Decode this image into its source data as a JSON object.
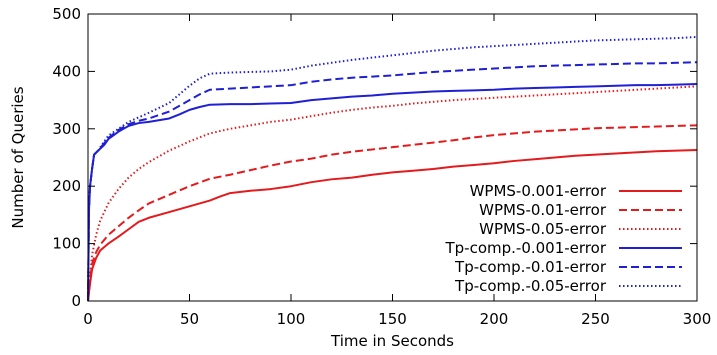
{
  "chart_data": {
    "type": "line",
    "title": "",
    "xlabel": "Time in Seconds",
    "ylabel": "Number of Queries",
    "xlim": [
      0,
      300
    ],
    "ylim": [
      0,
      500
    ],
    "xticks": [
      "0",
      "50",
      "100",
      "150",
      "200",
      "250",
      "300"
    ],
    "yticks": [
      "0",
      "100",
      "200",
      "300",
      "400",
      "500"
    ],
    "grid": false,
    "legend_position": "bottom-right",
    "series": [
      {
        "name": "WPMS-0.001-error",
        "color": "#e41a1c",
        "dash": "solid",
        "points": [
          [
            0,
            0
          ],
          [
            1,
            30
          ],
          [
            2,
            55
          ],
          [
            4,
            75
          ],
          [
            6,
            88
          ],
          [
            10,
            100
          ],
          [
            15,
            112
          ],
          [
            20,
            125
          ],
          [
            25,
            138
          ],
          [
            30,
            145
          ],
          [
            40,
            155
          ],
          [
            50,
            165
          ],
          [
            60,
            175
          ],
          [
            65,
            182
          ],
          [
            70,
            188
          ],
          [
            80,
            192
          ],
          [
            90,
            195
          ],
          [
            100,
            200
          ],
          [
            110,
            207
          ],
          [
            120,
            212
          ],
          [
            130,
            215
          ],
          [
            140,
            220
          ],
          [
            150,
            224
          ],
          [
            160,
            227
          ],
          [
            170,
            230
          ],
          [
            180,
            234
          ],
          [
            190,
            237
          ],
          [
            200,
            240
          ],
          [
            210,
            244
          ],
          [
            220,
            247
          ],
          [
            230,
            250
          ],
          [
            240,
            253
          ],
          [
            250,
            255
          ],
          [
            260,
            257
          ],
          [
            270,
            259
          ],
          [
            280,
            261
          ],
          [
            290,
            262
          ],
          [
            300,
            263
          ]
        ]
      },
      {
        "name": "WPMS-0.01-error",
        "color": "#e41a1c",
        "dash": "dashed",
        "points": [
          [
            0,
            0
          ],
          [
            1,
            35
          ],
          [
            2,
            65
          ],
          [
            4,
            85
          ],
          [
            6,
            98
          ],
          [
            10,
            115
          ],
          [
            15,
            130
          ],
          [
            20,
            145
          ],
          [
            25,
            158
          ],
          [
            30,
            170
          ],
          [
            40,
            185
          ],
          [
            50,
            200
          ],
          [
            60,
            213
          ],
          [
            70,
            220
          ],
          [
            80,
            228
          ],
          [
            90,
            236
          ],
          [
            100,
            243
          ],
          [
            110,
            248
          ],
          [
            120,
            255
          ],
          [
            130,
            260
          ],
          [
            140,
            264
          ],
          [
            150,
            268
          ],
          [
            160,
            272
          ],
          [
            170,
            276
          ],
          [
            180,
            280
          ],
          [
            190,
            285
          ],
          [
            200,
            289
          ],
          [
            210,
            292
          ],
          [
            220,
            295
          ],
          [
            230,
            297
          ],
          [
            240,
            299
          ],
          [
            250,
            301
          ],
          [
            260,
            302
          ],
          [
            270,
            303
          ],
          [
            280,
            304
          ],
          [
            290,
            305
          ],
          [
            300,
            306
          ]
        ]
      },
      {
        "name": "WPMS-0.05-error",
        "color": "#e41a1c",
        "dash": "dotted",
        "points": [
          [
            0,
            0
          ],
          [
            1,
            40
          ],
          [
            2,
            80
          ],
          [
            4,
            115
          ],
          [
            6,
            140
          ],
          [
            10,
            170
          ],
          [
            15,
            195
          ],
          [
            20,
            215
          ],
          [
            25,
            230
          ],
          [
            30,
            242
          ],
          [
            40,
            262
          ],
          [
            50,
            278
          ],
          [
            60,
            292
          ],
          [
            70,
            300
          ],
          [
            80,
            306
          ],
          [
            90,
            312
          ],
          [
            100,
            316
          ],
          [
            110,
            322
          ],
          [
            120,
            328
          ],
          [
            130,
            333
          ],
          [
            140,
            337
          ],
          [
            150,
            340
          ],
          [
            160,
            344
          ],
          [
            170,
            347
          ],
          [
            180,
            350
          ],
          [
            190,
            352
          ],
          [
            200,
            354
          ],
          [
            210,
            356
          ],
          [
            220,
            358
          ],
          [
            230,
            360
          ],
          [
            240,
            362
          ],
          [
            250,
            364
          ],
          [
            260,
            366
          ],
          [
            270,
            368
          ],
          [
            280,
            370
          ],
          [
            290,
            372
          ],
          [
            300,
            374
          ]
        ]
      },
      {
        "name": "Tp-comp.-0.001-error",
        "color": "#1f1fd6",
        "dash": "solid",
        "points": [
          [
            0,
            0
          ],
          [
            0.5,
            160
          ],
          [
            1,
            200
          ],
          [
            2,
            230
          ],
          [
            3,
            255
          ],
          [
            5,
            262
          ],
          [
            8,
            272
          ],
          [
            10,
            282
          ],
          [
            15,
            295
          ],
          [
            20,
            305
          ],
          [
            25,
            310
          ],
          [
            30,
            312
          ],
          [
            40,
            318
          ],
          [
            45,
            325
          ],
          [
            50,
            333
          ],
          [
            55,
            338
          ],
          [
            60,
            342
          ],
          [
            70,
            343
          ],
          [
            80,
            343
          ],
          [
            90,
            344
          ],
          [
            100,
            345
          ],
          [
            110,
            350
          ],
          [
            120,
            353
          ],
          [
            130,
            356
          ],
          [
            140,
            358
          ],
          [
            150,
            361
          ],
          [
            160,
            363
          ],
          [
            170,
            365
          ],
          [
            180,
            366
          ],
          [
            190,
            367
          ],
          [
            200,
            368
          ],
          [
            210,
            370
          ],
          [
            220,
            371
          ],
          [
            230,
            372
          ],
          [
            240,
            373
          ],
          [
            250,
            374
          ],
          [
            260,
            375
          ],
          [
            270,
            376
          ],
          [
            280,
            376
          ],
          [
            290,
            377
          ],
          [
            300,
            378
          ]
        ]
      },
      {
        "name": "Tp-comp.-0.01-error",
        "color": "#1f1fd6",
        "dash": "dashed",
        "points": [
          [
            0,
            0
          ],
          [
            0.5,
            160
          ],
          [
            1,
            200
          ],
          [
            2,
            230
          ],
          [
            3,
            255
          ],
          [
            5,
            262
          ],
          [
            8,
            275
          ],
          [
            10,
            284
          ],
          [
            15,
            298
          ],
          [
            20,
            308
          ],
          [
            25,
            314
          ],
          [
            30,
            318
          ],
          [
            40,
            330
          ],
          [
            45,
            340
          ],
          [
            50,
            350
          ],
          [
            55,
            360
          ],
          [
            60,
            368
          ],
          [
            70,
            370
          ],
          [
            80,
            372
          ],
          [
            90,
            374
          ],
          [
            100,
            376
          ],
          [
            110,
            382
          ],
          [
            120,
            386
          ],
          [
            130,
            389
          ],
          [
            140,
            391
          ],
          [
            150,
            393
          ],
          [
            160,
            396
          ],
          [
            170,
            399
          ],
          [
            180,
            401
          ],
          [
            190,
            403
          ],
          [
            200,
            405
          ],
          [
            210,
            407
          ],
          [
            220,
            409
          ],
          [
            230,
            410
          ],
          [
            240,
            411
          ],
          [
            250,
            412
          ],
          [
            260,
            413
          ],
          [
            270,
            414
          ],
          [
            280,
            414
          ],
          [
            290,
            415
          ],
          [
            300,
            416
          ]
        ]
      },
      {
        "name": "Tp-comp.-0.05-error",
        "color": "#1f1fd6",
        "dash": "dotted",
        "points": [
          [
            0,
            0
          ],
          [
            0.5,
            160
          ],
          [
            1,
            200
          ],
          [
            2,
            230
          ],
          [
            3,
            255
          ],
          [
            5,
            262
          ],
          [
            8,
            278
          ],
          [
            10,
            288
          ],
          [
            15,
            300
          ],
          [
            20,
            312
          ],
          [
            25,
            320
          ],
          [
            30,
            328
          ],
          [
            40,
            345
          ],
          [
            45,
            360
          ],
          [
            50,
            375
          ],
          [
            55,
            388
          ],
          [
            60,
            396
          ],
          [
            70,
            398
          ],
          [
            80,
            399
          ],
          [
            90,
            400
          ],
          [
            100,
            403
          ],
          [
            110,
            410
          ],
          [
            120,
            415
          ],
          [
            130,
            420
          ],
          [
            140,
            424
          ],
          [
            150,
            428
          ],
          [
            160,
            432
          ],
          [
            170,
            436
          ],
          [
            180,
            439
          ],
          [
            190,
            442
          ],
          [
            200,
            444
          ],
          [
            210,
            446
          ],
          [
            220,
            448
          ],
          [
            230,
            450
          ],
          [
            240,
            452
          ],
          [
            250,
            454
          ],
          [
            260,
            455
          ],
          [
            270,
            456
          ],
          [
            280,
            457
          ],
          [
            290,
            458
          ],
          [
            300,
            460
          ]
        ]
      }
    ]
  }
}
